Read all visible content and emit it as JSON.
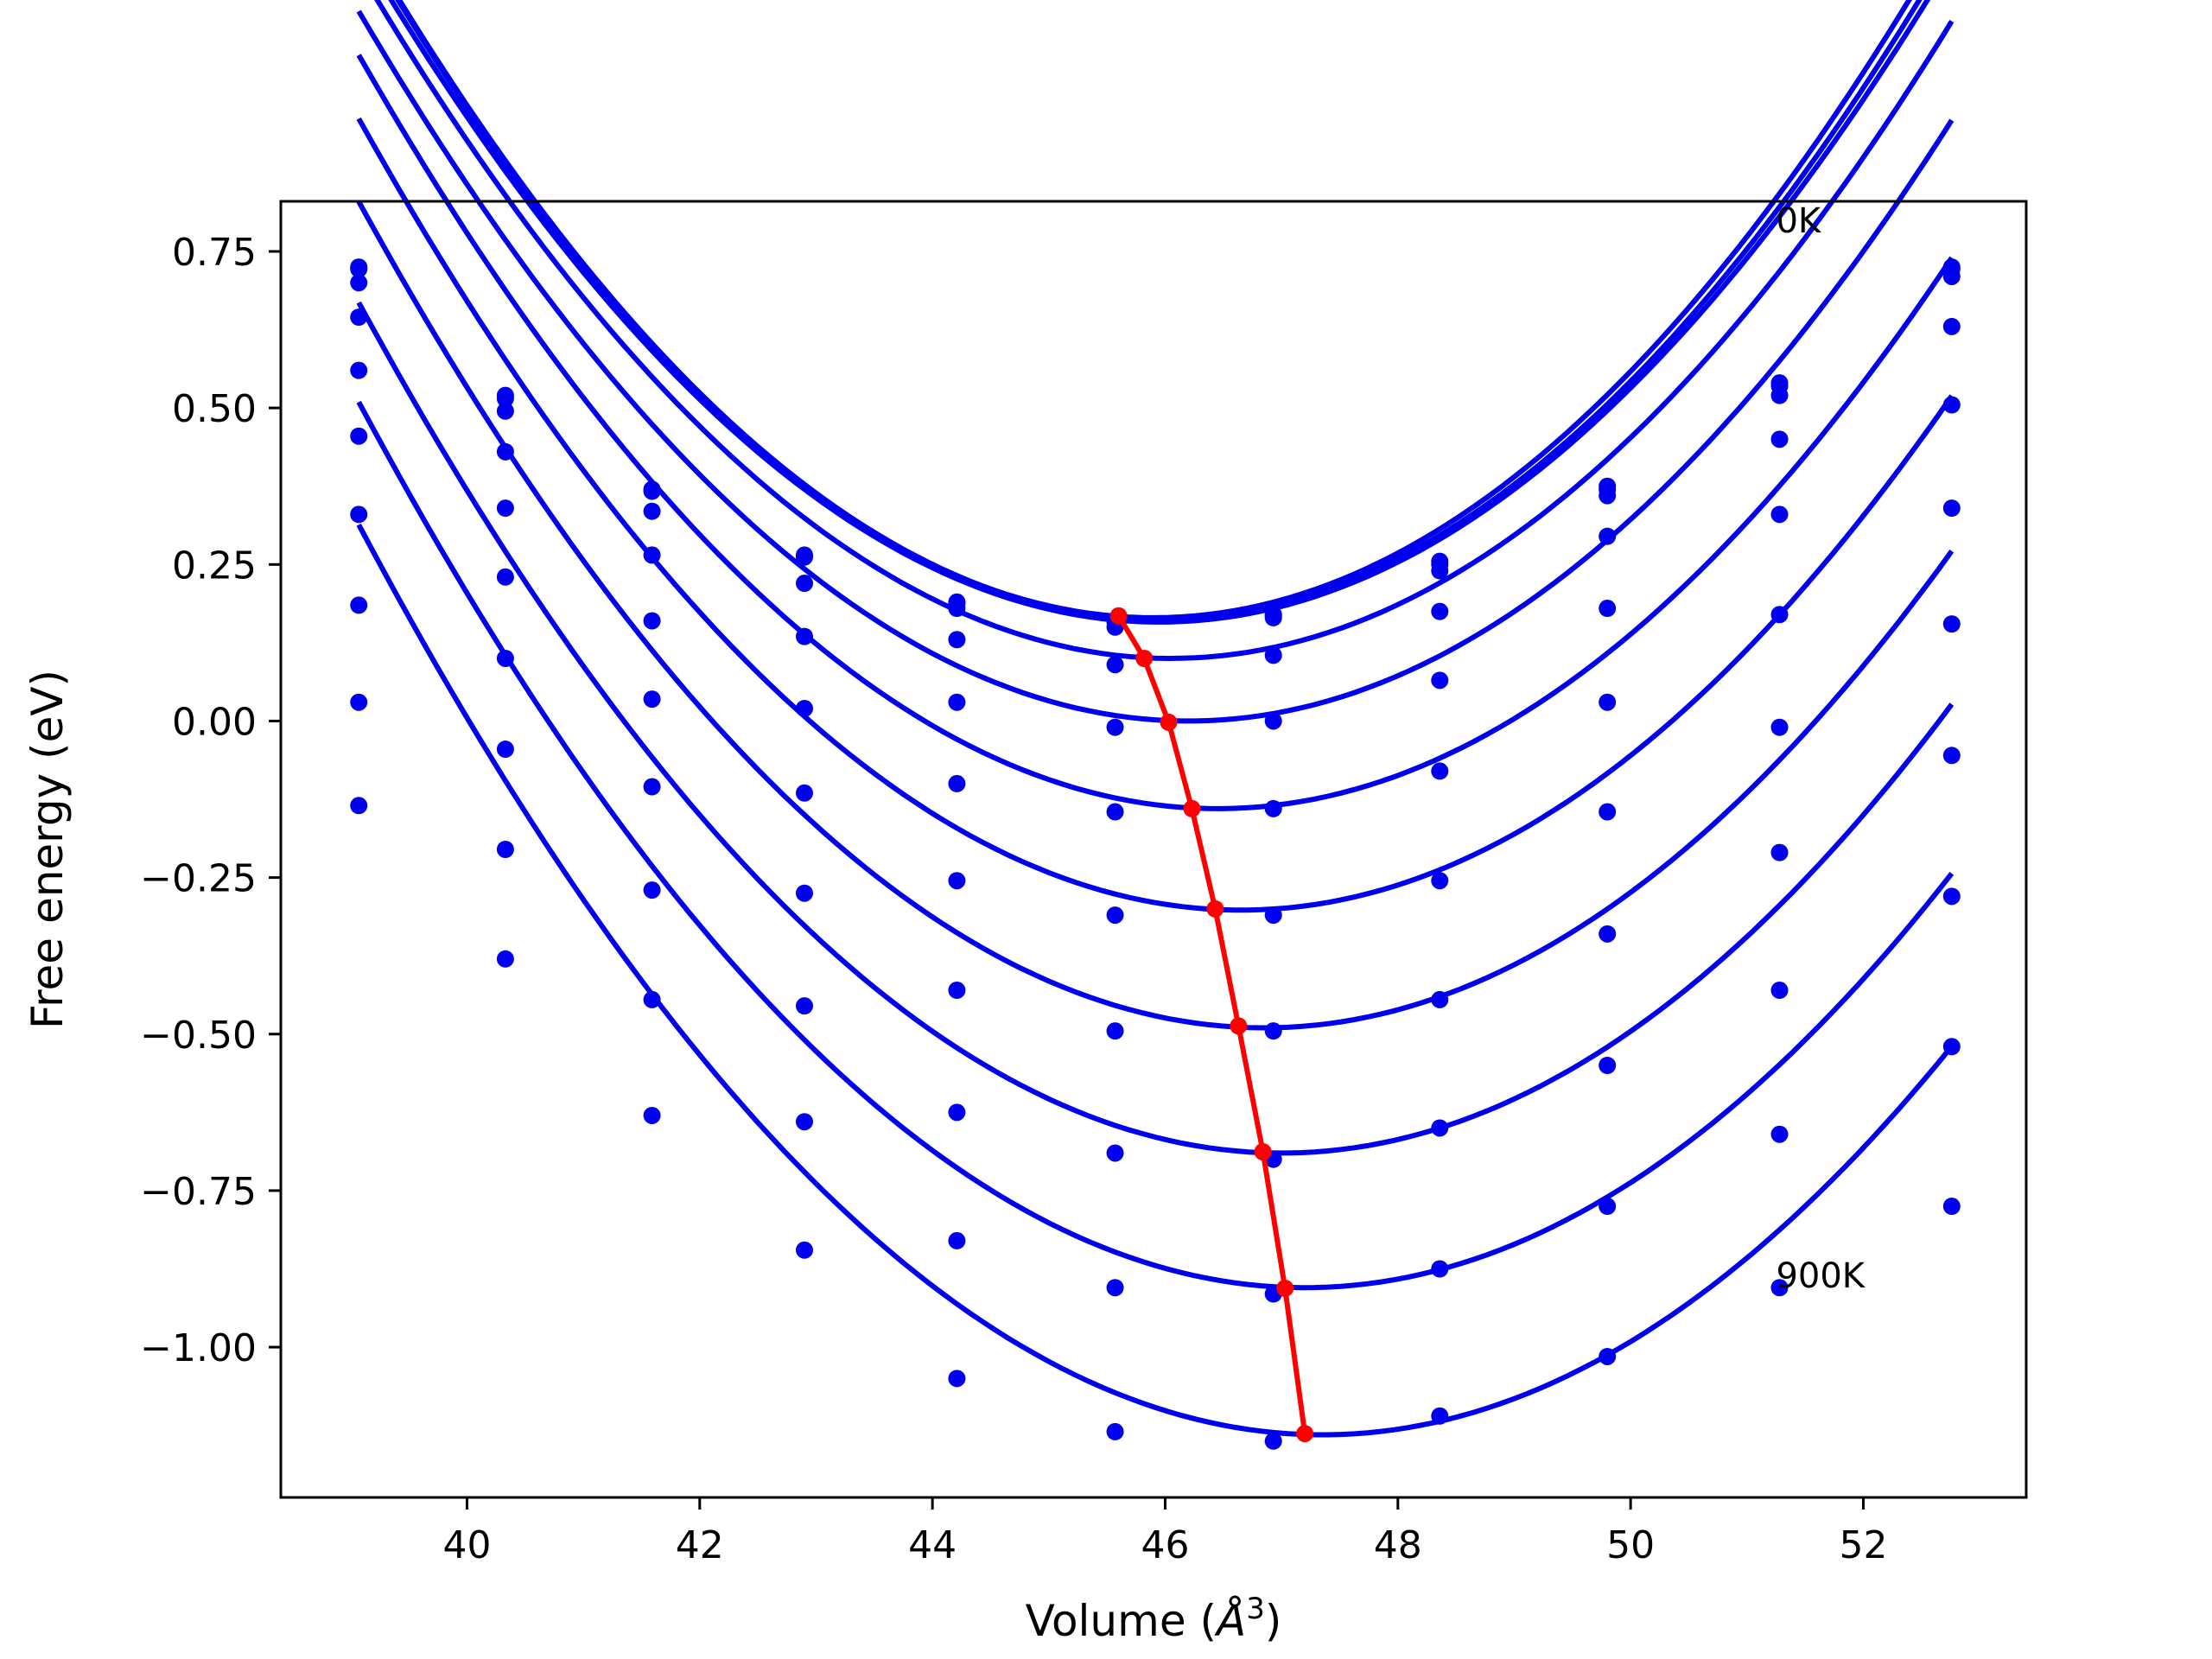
{
  "chart_data": {
    "type": "scatter",
    "title": "",
    "xlabel_prefix": "Volume (",
    "xlabel_unit": "Å",
    "xlabel_exp": "3",
    "xlabel_suffix": ")",
    "ylabel": "Free energy (eV)",
    "xlim": [
      38.4,
      53.4
    ],
    "ylim": [
      -1.24,
      0.83
    ],
    "xticks": [
      40,
      42,
      44,
      46,
      48,
      50,
      52
    ],
    "yticks": [
      0.75,
      0.5,
      0.25,
      0.0,
      -0.25,
      -0.5,
      -0.75,
      -1.0
    ],
    "xtick_labels": [
      "40",
      "42",
      "44",
      "46",
      "48",
      "50",
      "52"
    ],
    "ytick_labels": [
      "0.75",
      "0.50",
      "0.25",
      "0.00",
      "−0.25",
      "−0.50",
      "−0.75",
      "−1.00"
    ],
    "grid": false,
    "colors": {
      "series": "#0000ee",
      "equilibrium": "#ff0000"
    },
    "x_points": [
      39.07,
      40.33,
      41.59,
      42.9,
      44.21,
      45.57,
      46.93,
      48.36,
      49.8,
      51.28,
      52.76
    ],
    "series": [
      {
        "y": [
          0.725,
          0.52,
          0.37,
          0.265,
          0.19,
          0.16,
          0.17,
          0.255,
          0.375,
          0.54,
          0.725
        ],
        "fit": {
          "a": 0.0234,
          "v0": 45.9,
          "fmin": 0.165
        }
      },
      {
        "y": [
          0.722,
          0.515,
          0.367,
          0.262,
          0.188,
          0.158,
          0.168,
          0.25,
          0.37,
          0.535,
          0.722
        ],
        "fit": {
          "a": 0.0232,
          "v0": 45.95,
          "fmin": 0.162
        }
      },
      {
        "y": [
          0.7,
          0.495,
          0.335,
          0.22,
          0.18,
          0.15,
          0.165,
          0.24,
          0.36,
          0.52,
          0.71
        ],
        "fit": {
          "a": 0.0228,
          "v0": 45.95,
          "fmin": 0.158
        }
      },
      {
        "y": [
          0.645,
          0.43,
          0.265,
          0.135,
          0.13,
          0.09,
          0.105,
          0.175,
          0.295,
          0.45,
          0.63
        ],
        "fit": {
          "a": 0.0226,
          "v0": 46.05,
          "fmin": 0.1
        }
      },
      {
        "y": [
          0.56,
          0.34,
          0.16,
          0.02,
          0.03,
          -0.01,
          0.0,
          0.065,
          0.18,
          0.33,
          0.505
        ],
        "fit": {
          "a": 0.0223,
          "v0": 46.2,
          "fmin": 0.0
        }
      },
      {
        "y": [
          0.455,
          0.23,
          0.035,
          -0.115,
          -0.1,
          -0.145,
          -0.14,
          -0.08,
          0.03,
          0.17,
          0.34
        ],
        "fit": {
          "a": 0.0221,
          "v0": 46.45,
          "fmin": -0.14
        }
      },
      {
        "y": [
          0.33,
          0.1,
          -0.105,
          -0.275,
          -0.255,
          -0.31,
          -0.31,
          -0.255,
          -0.145,
          -0.01,
          0.155
        ],
        "fit": {
          "a": 0.022,
          "v0": 46.65,
          "fmin": -0.302
        }
      },
      {
        "y": [
          0.185,
          -0.045,
          -0.27,
          -0.455,
          -0.43,
          -0.495,
          -0.495,
          -0.445,
          -0.34,
          -0.21,
          -0.055
        ],
        "fit": {
          "a": 0.0218,
          "v0": 46.85,
          "fmin": -0.49
        }
      },
      {
        "y": [
          0.03,
          -0.205,
          -0.445,
          -0.64,
          -0.625,
          -0.69,
          -0.7,
          -0.65,
          -0.55,
          -0.43,
          -0.28
        ],
        "fit": {
          "a": 0.0216,
          "v0": 47.0,
          "fmin": -0.69
        }
      },
      {
        "y": [
          -0.135,
          -0.38,
          -0.63,
          -0.845,
          -0.83,
          -0.905,
          -0.915,
          -0.875,
          -0.775,
          -0.66,
          -0.52
        ],
        "fit": {
          "a": 0.0214,
          "v0": 47.2,
          "fmin": -0.905
        }
      },
      {
        "y": [
          null,
          null,
          null,
          null,
          -1.05,
          -1.135,
          -1.15,
          -1.11,
          -1.015,
          -0.905,
          -0.775
        ],
        "fit": {
          "a": 0.0212,
          "v0": 47.35,
          "fmin": -1.14
        }
      }
    ],
    "equilibrium": {
      "x": [
        45.6,
        45.82,
        46.03,
        46.23,
        46.43,
        46.63,
        46.84,
        47.03,
        47.2
      ],
      "y": [
        0.168,
        0.1,
        -0.002,
        -0.14,
        -0.3,
        -0.487,
        -0.688,
        -0.906,
        -1.138
      ]
    },
    "annotations": [
      {
        "text": "0K",
        "x": 51.25,
        "y": 0.78
      },
      {
        "text": "900K",
        "x": 51.25,
        "y": -0.905
      }
    ]
  }
}
